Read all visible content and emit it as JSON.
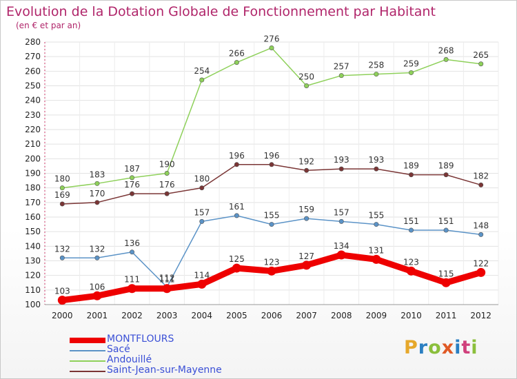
{
  "header": {
    "title": "Evolution de la Dotation Globale de Fonctionnement par Habitant",
    "subtitle": "(en € et par an)"
  },
  "logo": {
    "text": "Proxiti",
    "colors": [
      "#e6a82b",
      "#2b7fc2",
      "#8bbf3c",
      "#e05a26",
      "#2b7fc2",
      "#d0407c",
      "#8bbf3c"
    ]
  },
  "chart_data": {
    "type": "line",
    "x": [
      "2000",
      "2001",
      "2002",
      "2003",
      "2004",
      "2005",
      "2006",
      "2007",
      "2008",
      "2009",
      "2010",
      "2011",
      "2012"
    ],
    "ylim": [
      100,
      280
    ],
    "yticks": [
      100,
      110,
      120,
      130,
      140,
      150,
      160,
      170,
      180,
      190,
      200,
      210,
      220,
      230,
      240,
      250,
      260,
      270,
      280
    ],
    "grid": true,
    "series": [
      {
        "name": "MONTFLOURS",
        "color": "#ee0000",
        "emphasis": true,
        "values": [
          103,
          106,
          111,
          111,
          114,
          125,
          123,
          127,
          134,
          131,
          123,
          115,
          122
        ]
      },
      {
        "name": "Sacé",
        "color": "#5b93c7",
        "values": [
          132,
          132,
          136,
          112,
          157,
          161,
          155,
          159,
          157,
          155,
          151,
          151,
          148
        ]
      },
      {
        "name": "Andouillé",
        "color": "#8ed05a",
        "values": [
          180,
          183,
          187,
          190,
          254,
          266,
          276,
          250,
          257,
          258,
          259,
          268,
          265
        ]
      },
      {
        "name": "Saint-Jean-sur-Mayenne",
        "color": "#7a3535",
        "values": [
          169,
          170,
          176,
          176,
          180,
          196,
          196,
          192,
          193,
          193,
          189,
          189,
          182
        ]
      }
    ]
  }
}
